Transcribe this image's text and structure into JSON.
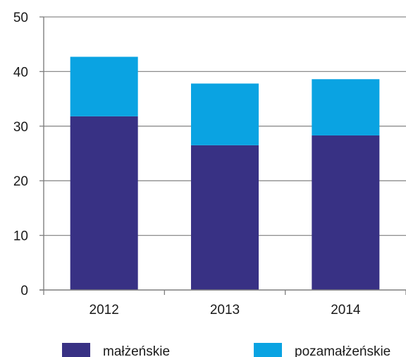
{
  "chart_data": {
    "type": "bar",
    "stacked": true,
    "categories": [
      "2012",
      "2013",
      "2014"
    ],
    "series": [
      {
        "name": "małżeńskie",
        "values": [
          31.8,
          26.5,
          28.3
        ],
        "color": "#383184"
      },
      {
        "name": "pozamałżeńskie",
        "values": [
          10.9,
          11.3,
          10.3
        ],
        "color": "#0aa3e2"
      }
    ],
    "title": "",
    "xlabel": "",
    "ylabel": "",
    "ylim": [
      0,
      50
    ],
    "yticks": [
      0,
      10,
      20,
      30,
      40,
      50
    ],
    "grid": true,
    "legend": "bottom"
  }
}
